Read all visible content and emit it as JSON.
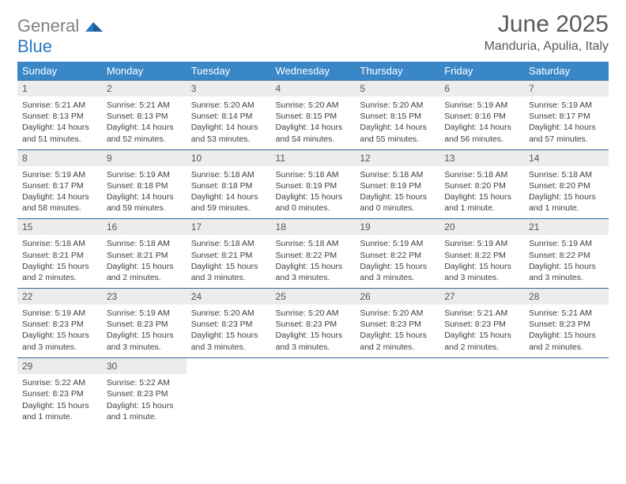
{
  "colors": {
    "header_bg": "#3a87c8",
    "header_text": "#ffffff",
    "line": "#2a6aa0",
    "daynum_bg": "#ececec",
    "daynum_text": "#555555",
    "body_text": "#404040",
    "title_text": "#5a5a5a",
    "logo_gray": "#808080",
    "logo_blue": "#2a79c0"
  },
  "logo": {
    "part1": "General",
    "part2": "Blue"
  },
  "title": "June 2025",
  "location": "Manduria, Apulia, Italy",
  "weekdays": [
    "Sunday",
    "Monday",
    "Tuesday",
    "Wednesday",
    "Thursday",
    "Friday",
    "Saturday"
  ],
  "labels": {
    "sunrise": "Sunrise:",
    "sunset": "Sunset:",
    "daylight": "Daylight:"
  },
  "weeks": [
    [
      {
        "n": "1",
        "sr": "5:21 AM",
        "ss": "8:13 PM",
        "dl": "14 hours and 51 minutes."
      },
      {
        "n": "2",
        "sr": "5:21 AM",
        "ss": "8:13 PM",
        "dl": "14 hours and 52 minutes."
      },
      {
        "n": "3",
        "sr": "5:20 AM",
        "ss": "8:14 PM",
        "dl": "14 hours and 53 minutes."
      },
      {
        "n": "4",
        "sr": "5:20 AM",
        "ss": "8:15 PM",
        "dl": "14 hours and 54 minutes."
      },
      {
        "n": "5",
        "sr": "5:20 AM",
        "ss": "8:15 PM",
        "dl": "14 hours and 55 minutes."
      },
      {
        "n": "6",
        "sr": "5:19 AM",
        "ss": "8:16 PM",
        "dl": "14 hours and 56 minutes."
      },
      {
        "n": "7",
        "sr": "5:19 AM",
        "ss": "8:17 PM",
        "dl": "14 hours and 57 minutes."
      }
    ],
    [
      {
        "n": "8",
        "sr": "5:19 AM",
        "ss": "8:17 PM",
        "dl": "14 hours and 58 minutes."
      },
      {
        "n": "9",
        "sr": "5:19 AM",
        "ss": "8:18 PM",
        "dl": "14 hours and 59 minutes."
      },
      {
        "n": "10",
        "sr": "5:18 AM",
        "ss": "8:18 PM",
        "dl": "14 hours and 59 minutes."
      },
      {
        "n": "11",
        "sr": "5:18 AM",
        "ss": "8:19 PM",
        "dl": "15 hours and 0 minutes."
      },
      {
        "n": "12",
        "sr": "5:18 AM",
        "ss": "8:19 PM",
        "dl": "15 hours and 0 minutes."
      },
      {
        "n": "13",
        "sr": "5:18 AM",
        "ss": "8:20 PM",
        "dl": "15 hours and 1 minute."
      },
      {
        "n": "14",
        "sr": "5:18 AM",
        "ss": "8:20 PM",
        "dl": "15 hours and 1 minute."
      }
    ],
    [
      {
        "n": "15",
        "sr": "5:18 AM",
        "ss": "8:21 PM",
        "dl": "15 hours and 2 minutes."
      },
      {
        "n": "16",
        "sr": "5:18 AM",
        "ss": "8:21 PM",
        "dl": "15 hours and 2 minutes."
      },
      {
        "n": "17",
        "sr": "5:18 AM",
        "ss": "8:21 PM",
        "dl": "15 hours and 3 minutes."
      },
      {
        "n": "18",
        "sr": "5:18 AM",
        "ss": "8:22 PM",
        "dl": "15 hours and 3 minutes."
      },
      {
        "n": "19",
        "sr": "5:19 AM",
        "ss": "8:22 PM",
        "dl": "15 hours and 3 minutes."
      },
      {
        "n": "20",
        "sr": "5:19 AM",
        "ss": "8:22 PM",
        "dl": "15 hours and 3 minutes."
      },
      {
        "n": "21",
        "sr": "5:19 AM",
        "ss": "8:22 PM",
        "dl": "15 hours and 3 minutes."
      }
    ],
    [
      {
        "n": "22",
        "sr": "5:19 AM",
        "ss": "8:23 PM",
        "dl": "15 hours and 3 minutes."
      },
      {
        "n": "23",
        "sr": "5:19 AM",
        "ss": "8:23 PM",
        "dl": "15 hours and 3 minutes."
      },
      {
        "n": "24",
        "sr": "5:20 AM",
        "ss": "8:23 PM",
        "dl": "15 hours and 3 minutes."
      },
      {
        "n": "25",
        "sr": "5:20 AM",
        "ss": "8:23 PM",
        "dl": "15 hours and 3 minutes."
      },
      {
        "n": "26",
        "sr": "5:20 AM",
        "ss": "8:23 PM",
        "dl": "15 hours and 2 minutes."
      },
      {
        "n": "27",
        "sr": "5:21 AM",
        "ss": "8:23 PM",
        "dl": "15 hours and 2 minutes."
      },
      {
        "n": "28",
        "sr": "5:21 AM",
        "ss": "8:23 PM",
        "dl": "15 hours and 2 minutes."
      }
    ],
    [
      {
        "n": "29",
        "sr": "5:22 AM",
        "ss": "8:23 PM",
        "dl": "15 hours and 1 minute."
      },
      {
        "n": "30",
        "sr": "5:22 AM",
        "ss": "8:23 PM",
        "dl": "15 hours and 1 minute."
      },
      null,
      null,
      null,
      null,
      null
    ]
  ]
}
